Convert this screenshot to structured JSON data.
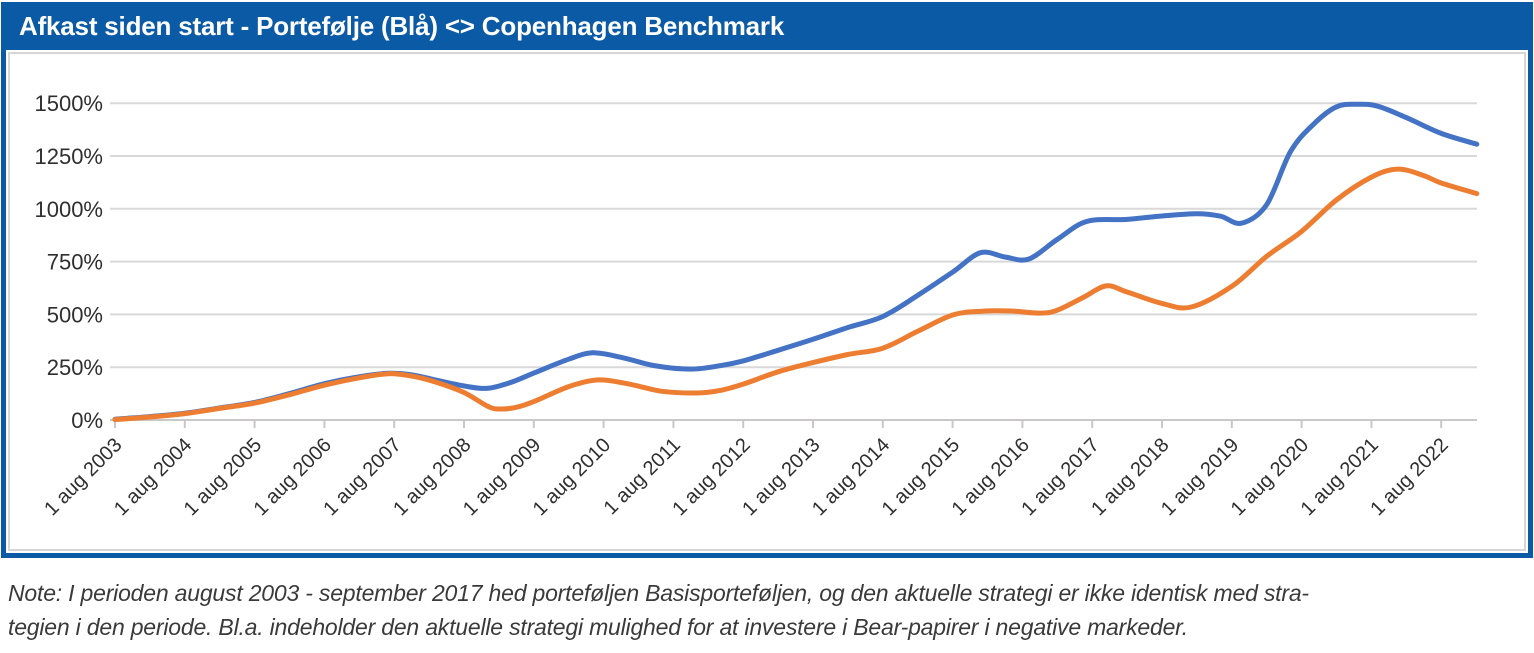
{
  "header": {
    "title": "Afkast siden start - Portefølje (Blå) <> Copenhagen Benchmark"
  },
  "note": {
    "line1": "Note: I perioden august 2003 - september 2017 hed porteføljen Basisporteføljen, og den aktuelle strategi er ikke identisk med stra-",
    "line2": "tegien i den periode. Bl.a. indeholder den aktuelle strategi mulighed for at investere i Bear-papirer i negative markeder."
  },
  "colors": {
    "frame_blue": "#0B5AA5",
    "portfolio_line": "#4472C4",
    "benchmark_line": "#ED7D31",
    "gridline": "#D9D9D9",
    "axis_line": "#C9C7C7",
    "axis_text": "#2F2F2F"
  },
  "chart_data": {
    "type": "line",
    "title": "Afkast siden start - Portefølje (Blå) <> Copenhagen Benchmark",
    "xlabel": "",
    "ylabel": "",
    "grid": "horizontal",
    "legend": "none",
    "ylim": [
      0,
      1583
    ],
    "y_ticks": [
      "0%",
      "250%",
      "500%",
      "750%",
      "1000%",
      "1250%",
      "1500%"
    ],
    "y_tick_values": [
      0,
      250,
      500,
      750,
      1000,
      1250,
      1500
    ],
    "x_ticks": [
      "1 aug 2003",
      "1 aug 2004",
      "1 aug 2005",
      "1 aug 2006",
      "1 aug 2007",
      "1 aug 2008",
      "1 aug 2009",
      "1 aug 2010",
      "1 aug 2011",
      "1 aug 2012",
      "1 aug 2013",
      "1 aug 2014",
      "1 aug 2015",
      "1 aug 2016",
      "1 aug 2017",
      "1 aug 2018",
      "1 aug 2019",
      "1 aug 2020",
      "1 aug 2021",
      "1 aug 2022"
    ],
    "x_tick_start_year": 2003.58,
    "x_domain_years": [
      2003.58,
      2023.09
    ],
    "series": [
      {
        "name": "Portefølje (Blå)",
        "color": "#4472C4",
        "points": [
          [
            2003.58,
            4
          ],
          [
            2004.08,
            16
          ],
          [
            2004.58,
            32
          ],
          [
            2005.08,
            57
          ],
          [
            2005.58,
            83
          ],
          [
            2006.08,
            125
          ],
          [
            2006.58,
            172
          ],
          [
            2007.08,
            205
          ],
          [
            2007.5,
            221
          ],
          [
            2007.83,
            214
          ],
          [
            2008.17,
            190
          ],
          [
            2008.6,
            160
          ],
          [
            2008.92,
            150
          ],
          [
            2009.25,
            178
          ],
          [
            2009.58,
            222
          ],
          [
            2010.08,
            288
          ],
          [
            2010.42,
            318
          ],
          [
            2010.83,
            297
          ],
          [
            2011.33,
            256
          ],
          [
            2011.83,
            241
          ],
          [
            2012.25,
            257
          ],
          [
            2012.58,
            280
          ],
          [
            2013.08,
            330
          ],
          [
            2013.58,
            382
          ],
          [
            2014.08,
            438
          ],
          [
            2014.58,
            490
          ],
          [
            2015.08,
            590
          ],
          [
            2015.58,
            700
          ],
          [
            2015.98,
            792
          ],
          [
            2016.33,
            772
          ],
          [
            2016.67,
            762
          ],
          [
            2017.08,
            855
          ],
          [
            2017.5,
            940
          ],
          [
            2018.08,
            950
          ],
          [
            2018.58,
            966
          ],
          [
            2019.08,
            977
          ],
          [
            2019.42,
            965
          ],
          [
            2019.72,
            932
          ],
          [
            2020.08,
            1020
          ],
          [
            2020.42,
            1270
          ],
          [
            2020.75,
            1400
          ],
          [
            2021.08,
            1483
          ],
          [
            2021.38,
            1495
          ],
          [
            2021.67,
            1486
          ],
          [
            2022.08,
            1432
          ],
          [
            2022.58,
            1357
          ],
          [
            2023.09,
            1306
          ]
        ]
      },
      {
        "name": "Copenhagen Benchmark",
        "color": "#ED7D31",
        "points": [
          [
            2003.58,
            2
          ],
          [
            2004.08,
            14
          ],
          [
            2004.58,
            30
          ],
          [
            2005.08,
            55
          ],
          [
            2005.58,
            80
          ],
          [
            2006.08,
            120
          ],
          [
            2006.58,
            165
          ],
          [
            2007.08,
            200
          ],
          [
            2007.5,
            219
          ],
          [
            2007.83,
            208
          ],
          [
            2008.17,
            180
          ],
          [
            2008.58,
            130
          ],
          [
            2008.92,
            65
          ],
          [
            2009.08,
            52
          ],
          [
            2009.33,
            60
          ],
          [
            2009.58,
            87
          ],
          [
            2010.08,
            158
          ],
          [
            2010.5,
            190
          ],
          [
            2010.92,
            172
          ],
          [
            2011.42,
            136
          ],
          [
            2011.92,
            128
          ],
          [
            2012.25,
            140
          ],
          [
            2012.58,
            170
          ],
          [
            2013.08,
            228
          ],
          [
            2013.58,
            272
          ],
          [
            2014.08,
            310
          ],
          [
            2014.58,
            340
          ],
          [
            2015.08,
            420
          ],
          [
            2015.58,
            497
          ],
          [
            2016.0,
            515
          ],
          [
            2016.42,
            516
          ],
          [
            2016.83,
            506
          ],
          [
            2017.08,
            520
          ],
          [
            2017.45,
            580
          ],
          [
            2017.78,
            635
          ],
          [
            2018.08,
            606
          ],
          [
            2018.58,
            552
          ],
          [
            2019.0,
            535
          ],
          [
            2019.58,
            633
          ],
          [
            2020.08,
            775
          ],
          [
            2020.58,
            893
          ],
          [
            2021.08,
            1042
          ],
          [
            2021.58,
            1150
          ],
          [
            2021.96,
            1188
          ],
          [
            2022.33,
            1157
          ],
          [
            2022.58,
            1122
          ],
          [
            2023.09,
            1072
          ]
        ]
      }
    ]
  }
}
